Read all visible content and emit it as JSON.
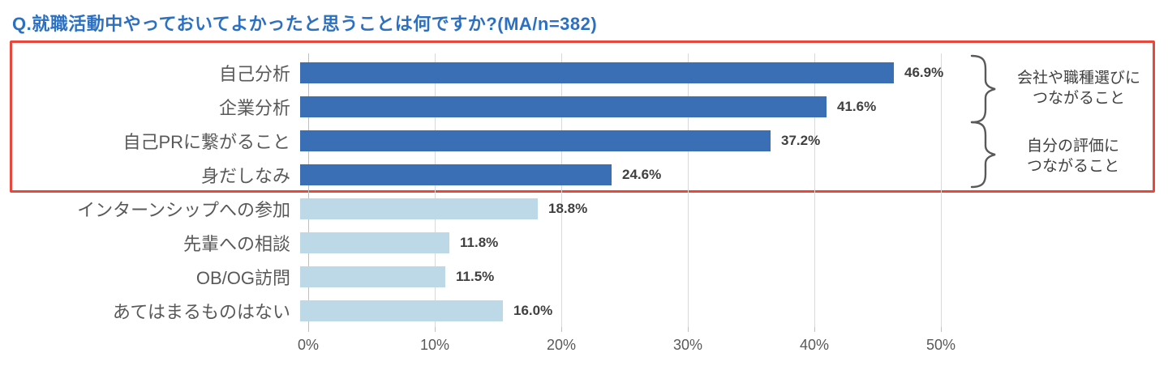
{
  "title": "Q.就職活動中やっておいてよかったと思うことは何ですか?(MA/n=382)",
  "colors": {
    "title": "#2b70c2",
    "bar_dark": "#3a6fb5",
    "bar_light": "#bdd8e6",
    "highlight_box": "#e8473b",
    "gridline": "#d9d9d9",
    "category_label": "#595959",
    "value_label": "#404040"
  },
  "chart_data": {
    "type": "bar",
    "orientation": "horizontal",
    "title": "Q.就職活動中やっておいてよかったと思うことは何ですか?(MA/n=382)",
    "categories": [
      "自己分析",
      "企業分析",
      "自己PRに繋がること",
      "身だしなみ",
      "インターンシップへの参加",
      "先輩への相談",
      "OB/OG訪問",
      "あてはまるものはない"
    ],
    "values": [
      46.9,
      41.6,
      37.2,
      24.6,
      18.8,
      11.8,
      11.5,
      16.0
    ],
    "value_labels": [
      "46.9%",
      "41.6%",
      "37.2%",
      "24.6%",
      "18.8%",
      "11.8%",
      "11.5%",
      "16.0%"
    ],
    "highlighted": [
      true,
      true,
      true,
      true,
      false,
      false,
      false,
      false
    ],
    "xlim": [
      0,
      50
    ],
    "x_ticks": [
      "0%",
      "10%",
      "20%",
      "30%",
      "40%",
      "50%"
    ],
    "grid": true,
    "legend": "none"
  },
  "annotations": [
    {
      "line1": "会社や職種選びに",
      "line2": "つながること",
      "covers_rows": [
        0,
        1
      ]
    },
    {
      "line1": "自分の評価に",
      "line2": "つながること",
      "covers_rows": [
        2,
        3
      ]
    }
  ]
}
